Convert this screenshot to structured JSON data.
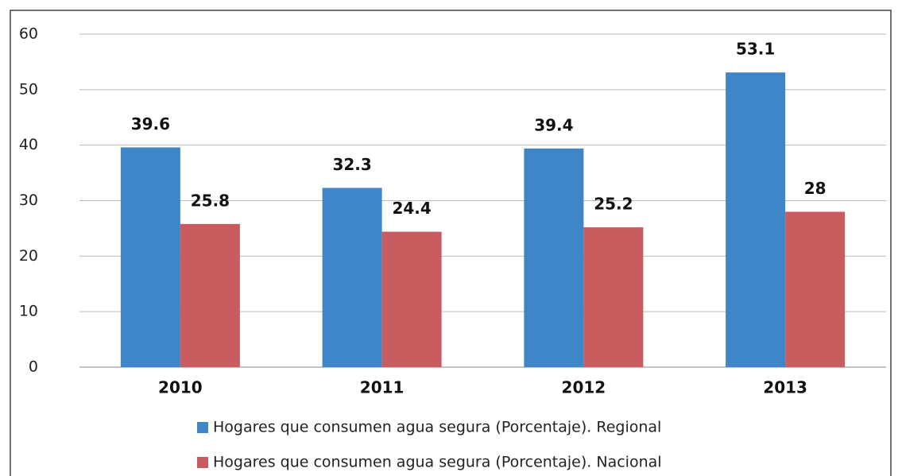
{
  "chart_data": {
    "type": "bar",
    "categories": [
      "2010",
      "2011",
      "2012",
      "2013"
    ],
    "series": [
      {
        "name": "Hogares que consumen agua segura (Porcentaje). Regional",
        "color": "#3f86c8",
        "values": [
          39.6,
          32.3,
          39.4,
          53.1
        ]
      },
      {
        "name": "Hogares que consumen agua segura (Porcentaje). Nacional",
        "color": "#c95c5f",
        "values": [
          25.8,
          24.4,
          25.2,
          28
        ]
      }
    ],
    "ylim": [
      0,
      60
    ],
    "yticks": [
      0,
      10,
      20,
      30,
      40,
      50,
      60
    ],
    "grid": true
  }
}
